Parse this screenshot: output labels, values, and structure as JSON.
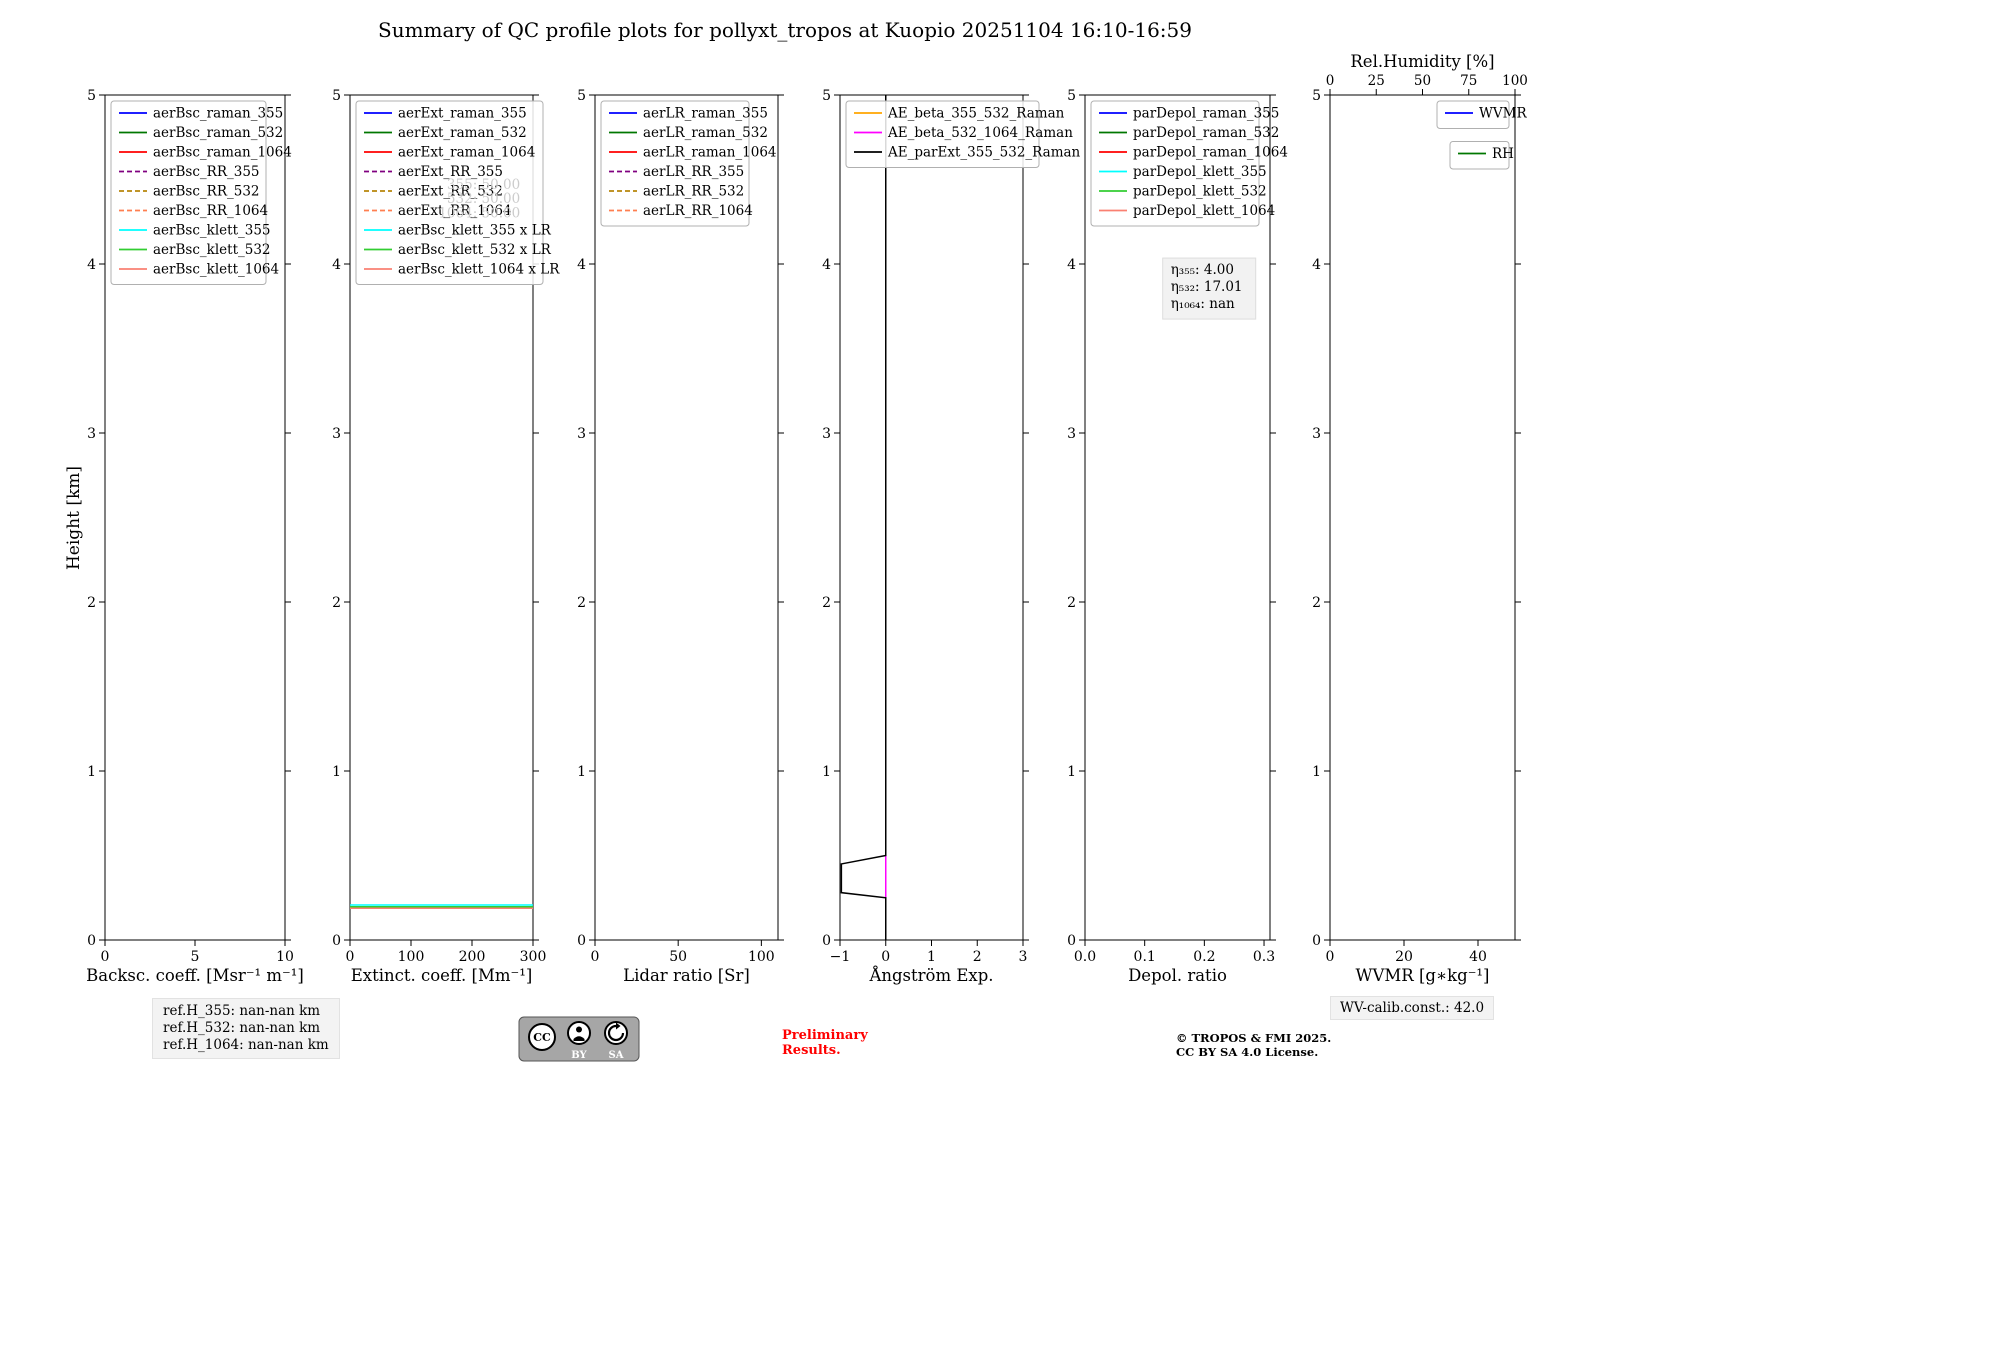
{
  "header": {
    "title": "Summary of QC profile plots for pollyxt_tropos at Kuopio 20251104 16:10-16:59"
  },
  "axes": {
    "ylabel": "Height [km]"
  },
  "footer": {
    "ref_heights": [
      "ref.H_355: nan-nan km",
      "ref.H_532: nan-nan km",
      "ref.H_1064: nan-nan km"
    ],
    "preliminary_1": "Preliminary",
    "preliminary_2": "Results.",
    "copyright_1": "© TROPOS & FMI 2025.",
    "copyright_2": "CC BY SA 4.0 License.",
    "wv_calib": "WV-calib.const.: 42.0",
    "badge_cc": "CC",
    "badge_by": "BY",
    "badge_sa": "SA"
  },
  "chart_data": [
    {
      "type": "line",
      "name": "backscatter",
      "xlabel": "Backsc. coeff. [Msr⁻¹ m⁻¹]",
      "xlim": [
        0,
        10
      ],
      "xticks": [
        {
          "v": 0,
          "l": "0"
        },
        {
          "v": 5,
          "l": "5"
        },
        {
          "v": 10,
          "l": "10"
        }
      ],
      "ylim": [
        0,
        5
      ],
      "yticks": [
        {
          "v": 0,
          "l": "0"
        },
        {
          "v": 1,
          "l": "1"
        },
        {
          "v": 2,
          "l": "2"
        },
        {
          "v": 3,
          "l": "3"
        },
        {
          "v": 4,
          "l": "4"
        },
        {
          "v": 5,
          "l": "5"
        }
      ],
      "legends": [
        {
          "loc": "upper-left",
          "entries": [
            {
              "label": "aerBsc_raman_355",
              "color": "#0000ff",
              "dash": false
            },
            {
              "label": "aerBsc_raman_532",
              "color": "#007700",
              "dash": false
            },
            {
              "label": "aerBsc_raman_1064",
              "color": "#ff0000",
              "dash": false
            },
            {
              "label": "aerBsc_RR_355",
              "color": "#800080",
              "dash": true
            },
            {
              "label": "aerBsc_RR_532",
              "color": "#b8860b",
              "dash": true
            },
            {
              "label": "aerBsc_RR_1064",
              "color": "#ff7f50",
              "dash": true
            },
            {
              "label": "aerBsc_klett_355",
              "color": "#00ffff",
              "dash": false
            },
            {
              "label": "aerBsc_klett_532",
              "color": "#32cd32",
              "dash": false
            },
            {
              "label": "aerBsc_klett_1064",
              "color": "#fa8072",
              "dash": false
            }
          ]
        }
      ],
      "lines": []
    },
    {
      "type": "line",
      "name": "extinction",
      "xlabel": "Extinct. coeff. [Mm⁻¹]",
      "xlim": [
        0,
        300
      ],
      "xticks": [
        {
          "v": 0,
          "l": "0"
        },
        {
          "v": 100,
          "l": "100"
        },
        {
          "v": 200,
          "l": "200"
        },
        {
          "v": 300,
          "l": "300"
        }
      ],
      "ylim": [
        0,
        5
      ],
      "yticks": [
        {
          "v": 0,
          "l": "0"
        },
        {
          "v": 1,
          "l": "1"
        },
        {
          "v": 2,
          "l": "2"
        },
        {
          "v": 3,
          "l": "3"
        },
        {
          "v": 4,
          "l": "4"
        },
        {
          "v": 5,
          "l": "5"
        }
      ],
      "legends": [
        {
          "loc": "upper-left",
          "entries": [
            {
              "label": "aerExt_raman_355",
              "color": "#0000ff",
              "dash": false
            },
            {
              "label": "aerExt_raman_532",
              "color": "#007700",
              "dash": false
            },
            {
              "label": "aerExt_raman_1064",
              "color": "#ff0000",
              "dash": false
            },
            {
              "label": "aerExt_RR_355",
              "color": "#800080",
              "dash": true
            },
            {
              "label": "aerExt_RR_532",
              "color": "#b8860b",
              "dash": true
            },
            {
              "label": "aerExt_RR_1064",
              "color": "#ff7f50",
              "dash": true
            },
            {
              "label": "aerBsc_klett_355 x LR",
              "color": "#00ffff",
              "dash": false
            },
            {
              "label": "aerBsc_klett_532 x LR",
              "color": "#32cd32",
              "dash": false
            },
            {
              "label": "aerBsc_klett_1064 x LR",
              "color": "#fa8072",
              "dash": false
            }
          ]
        }
      ],
      "annotations": [
        {
          "ax": 0.93,
          "ay": 0.889,
          "text": "355: 50.00",
          "color": "#cccccc",
          "align": "right"
        },
        {
          "ax": 0.93,
          "ay": 0.872,
          "text": "532: 50.00",
          "color": "#cccccc",
          "align": "right"
        },
        {
          "ax": 0.93,
          "ay": 0.855,
          "text": "1064: 50.00",
          "color": "#cccccc",
          "align": "right"
        }
      ],
      "lines": [
        {
          "name": "aerBsc_klett_355_x_LR",
          "color": "#00ffff",
          "points": [
            [
              0,
              0.207
            ],
            [
              300,
              0.207
            ]
          ]
        },
        {
          "name": "aerBsc_klett_532_x_LR",
          "color": "#32cd32",
          "points": [
            [
              0,
              0.197
            ],
            [
              300,
              0.197
            ]
          ]
        },
        {
          "name": "aerBsc_klett_1064_x_LR",
          "color": "#fa8072",
          "points": [
            [
              0,
              0.188
            ],
            [
              300,
              0.188
            ]
          ]
        }
      ]
    },
    {
      "type": "line",
      "name": "lidar-ratio",
      "xlabel": "Lidar ratio [Sr]",
      "xlim": [
        0,
        110
      ],
      "xticks": [
        {
          "v": 0,
          "l": "0"
        },
        {
          "v": 50,
          "l": "50"
        },
        {
          "v": 100,
          "l": "100"
        }
      ],
      "ylim": [
        0,
        5
      ],
      "yticks": [
        {
          "v": 0,
          "l": "0"
        },
        {
          "v": 1,
          "l": "1"
        },
        {
          "v": 2,
          "l": "2"
        },
        {
          "v": 3,
          "l": "3"
        },
        {
          "v": 4,
          "l": "4"
        },
        {
          "v": 5,
          "l": "5"
        }
      ],
      "legends": [
        {
          "loc": "upper-left",
          "entries": [
            {
              "label": "aerLR_raman_355",
              "color": "#0000ff",
              "dash": false
            },
            {
              "label": "aerLR_raman_532",
              "color": "#007700",
              "dash": false
            },
            {
              "label": "aerLR_raman_1064",
              "color": "#ff0000",
              "dash": false
            },
            {
              "label": "aerLR_RR_355",
              "color": "#800080",
              "dash": true
            },
            {
              "label": "aerLR_RR_532",
              "color": "#b8860b",
              "dash": true
            },
            {
              "label": "aerLR_RR_1064",
              "color": "#ff7f50",
              "dash": true
            }
          ]
        }
      ],
      "lines": []
    },
    {
      "type": "line",
      "name": "angstroem-exponent",
      "xlabel": "Ångström Exp.",
      "xlim": [
        -1,
        3
      ],
      "xticks": [
        {
          "v": -1,
          "l": "−1"
        },
        {
          "v": 0,
          "l": "0"
        },
        {
          "v": 1,
          "l": "1"
        },
        {
          "v": 2,
          "l": "2"
        },
        {
          "v": 3,
          "l": "3"
        }
      ],
      "ylim": [
        0,
        5
      ],
      "yticks": [
        {
          "v": 0,
          "l": "0"
        },
        {
          "v": 1,
          "l": "1"
        },
        {
          "v": 2,
          "l": "2"
        },
        {
          "v": 3,
          "l": "3"
        },
        {
          "v": 4,
          "l": "4"
        },
        {
          "v": 5,
          "l": "5"
        }
      ],
      "legends": [
        {
          "loc": "upper-left",
          "entries": [
            {
              "label": "AE_beta_355_532_Raman",
              "color": "#ffa500",
              "dash": false
            },
            {
              "label": "AE_beta_532_1064_Raman",
              "color": "#ff00ff",
              "dash": false
            },
            {
              "label": "AE_parExt_355_532_Raman",
              "color": "#000000",
              "dash": false
            }
          ]
        }
      ],
      "lines": [
        {
          "name": "AE_beta_355_532_Raman",
          "color": "#ffa500",
          "points": [
            [
              0,
              0.52
            ],
            [
              0,
              0.24
            ]
          ]
        },
        {
          "name": "AE_beta_532_1064_Raman",
          "color": "#ff00ff",
          "points": [
            [
              0,
              0.52
            ],
            [
              0,
              0.24
            ]
          ]
        },
        {
          "name": "AE_parExt_355_532_Raman",
          "color": "#000000",
          "points": [
            [
              0,
              5
            ],
            [
              0,
              0.5
            ],
            [
              -0.97,
              0.45
            ],
            [
              -0.97,
              0.28
            ],
            [
              0,
              0.25
            ],
            [
              0,
              0
            ]
          ]
        }
      ]
    },
    {
      "type": "line",
      "name": "depol-ratio",
      "xlabel": "Depol. ratio",
      "xlim": [
        0,
        0.31
      ],
      "xticks": [
        {
          "v": 0,
          "l": "0.0"
        },
        {
          "v": 0.1,
          "l": "0.1"
        },
        {
          "v": 0.2,
          "l": "0.2"
        },
        {
          "v": 0.3,
          "l": "0.3"
        }
      ],
      "ylim": [
        0,
        5
      ],
      "yticks": [
        {
          "v": 0,
          "l": "0"
        },
        {
          "v": 1,
          "l": "1"
        },
        {
          "v": 2,
          "l": "2"
        },
        {
          "v": 3,
          "l": "3"
        },
        {
          "v": 4,
          "l": "4"
        },
        {
          "v": 5,
          "l": "5"
        }
      ],
      "legends": [
        {
          "loc": "upper-left",
          "entries": [
            {
              "label": "parDepol_raman_355",
              "color": "#0000ff",
              "dash": false
            },
            {
              "label": "parDepol_raman_532",
              "color": "#007700",
              "dash": false
            },
            {
              "label": "parDepol_raman_1064",
              "color": "#ff0000",
              "dash": false
            },
            {
              "label": "parDepol_klett_355",
              "color": "#00ffff",
              "dash": false
            },
            {
              "label": "parDepol_klett_532",
              "color": "#32cd32",
              "dash": false
            },
            {
              "label": "parDepol_klett_1064",
              "color": "#fa8072",
              "dash": false
            }
          ]
        }
      ],
      "annotations": [
        {
          "ax": 0.42,
          "ay": 0.807,
          "lines": [
            "η₃₅₅: 4.00",
            "η₅₃₂: 17.01",
            "η₁₀₆₄: nan"
          ],
          "bg": "#f1f1f1",
          "color": "#000000",
          "align": "left"
        }
      ],
      "lines": []
    },
    {
      "type": "line",
      "name": "wvmr-rh",
      "xlabel": "WVMR [g∗kg⁻¹]",
      "xlim": [
        0,
        50
      ],
      "xticks": [
        {
          "v": 0,
          "l": "0"
        },
        {
          "v": 20,
          "l": "20"
        },
        {
          "v": 40,
          "l": "40"
        }
      ],
      "ylim": [
        0,
        5
      ],
      "yticks": [
        {
          "v": 0,
          "l": "0"
        },
        {
          "v": 1,
          "l": "1"
        },
        {
          "v": 2,
          "l": "2"
        },
        {
          "v": 3,
          "l": "3"
        },
        {
          "v": 4,
          "l": "4"
        },
        {
          "v": 5,
          "l": "5"
        }
      ],
      "top_axis": {
        "label": "Rel.Humidity [%]",
        "lim": [
          0,
          100
        ],
        "ticks": [
          {
            "v": 0,
            "l": "0"
          },
          {
            "v": 25,
            "l": "25"
          },
          {
            "v": 50,
            "l": "50"
          },
          {
            "v": 75,
            "l": "75"
          },
          {
            "v": 100,
            "l": "100"
          }
        ]
      },
      "legends": [
        {
          "loc": "upper-right",
          "entries": [
            {
              "label": "WVMR",
              "color": "#0000ff",
              "dash": false
            }
          ]
        },
        {
          "loc": "upper-right",
          "entries": [
            {
              "label": "RH",
              "color": "#007700",
              "dash": false
            }
          ]
        }
      ],
      "lines": []
    }
  ]
}
